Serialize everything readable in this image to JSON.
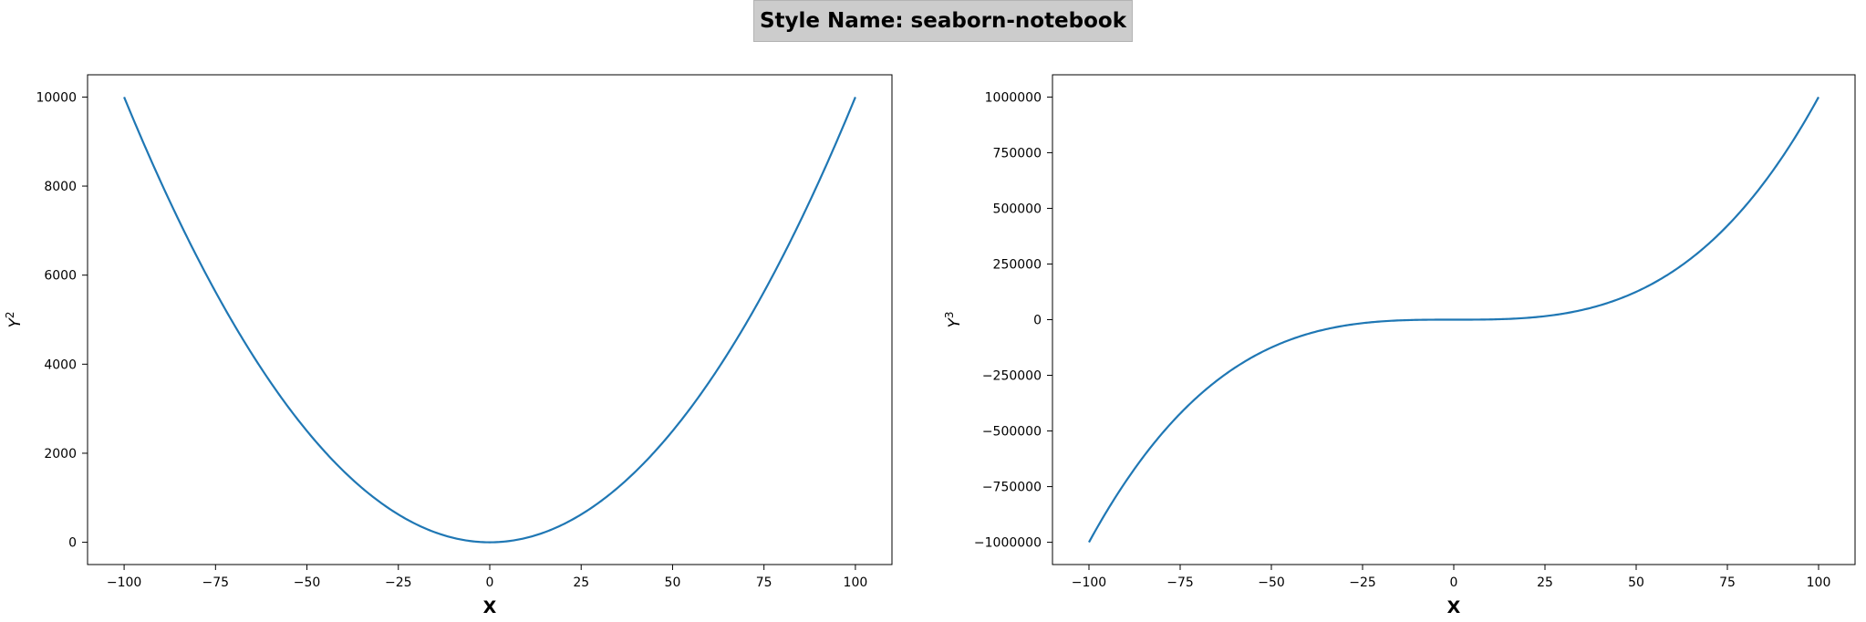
{
  "figure": {
    "suptitle": "Style Name: seaborn-notebook"
  },
  "colors": {
    "line": "#1f77b4",
    "title_box": "#cccccc"
  },
  "chart_data": [
    {
      "type": "line",
      "title": "",
      "xlabel": "X",
      "ylabel": "Y",
      "ylabel_exponent": "2",
      "function": "x^2",
      "x": [
        -100,
        -75,
        -50,
        -25,
        0,
        25,
        50,
        75,
        100
      ],
      "series": [
        {
          "values": [
            10000,
            5625,
            2500,
            625,
            0,
            625,
            2500,
            5625,
            10000
          ]
        }
      ],
      "xlim": [
        -110,
        110
      ],
      "ylim": [
        -500,
        10500
      ],
      "xticks": [
        -100,
        -75,
        -50,
        -25,
        0,
        25,
        50,
        75,
        100
      ],
      "xtick_labels": [
        "−100",
        "−75",
        "−50",
        "−25",
        "0",
        "25",
        "50",
        "75",
        "100"
      ],
      "yticks": [
        0,
        2000,
        4000,
        6000,
        8000,
        10000
      ],
      "ytick_labels": [
        "0",
        "2000",
        "4000",
        "6000",
        "8000",
        "10000"
      ],
      "grid": false
    },
    {
      "type": "line",
      "title": "",
      "xlabel": "X",
      "ylabel": "Y",
      "ylabel_exponent": "3",
      "function": "x^3",
      "x": [
        -100,
        -75,
        -50,
        -25,
        0,
        25,
        50,
        75,
        100
      ],
      "series": [
        {
          "values": [
            -1000000,
            -421875,
            -125000,
            -15625,
            0,
            15625,
            125000,
            421875,
            1000000
          ]
        }
      ],
      "xlim": [
        -110,
        110
      ],
      "ylim": [
        -1100000,
        1100000
      ],
      "xticks": [
        -100,
        -75,
        -50,
        -25,
        0,
        25,
        50,
        75,
        100
      ],
      "xtick_labels": [
        "−100",
        "−75",
        "−50",
        "−25",
        "0",
        "25",
        "50",
        "75",
        "100"
      ],
      "yticks": [
        -1000000,
        -750000,
        -500000,
        -250000,
        0,
        250000,
        500000,
        750000,
        1000000
      ],
      "ytick_labels": [
        "−1000000",
        "−750000",
        "−500000",
        "−250000",
        "0",
        "250000",
        "500000",
        "750000",
        "1000000"
      ],
      "grid": false
    }
  ]
}
